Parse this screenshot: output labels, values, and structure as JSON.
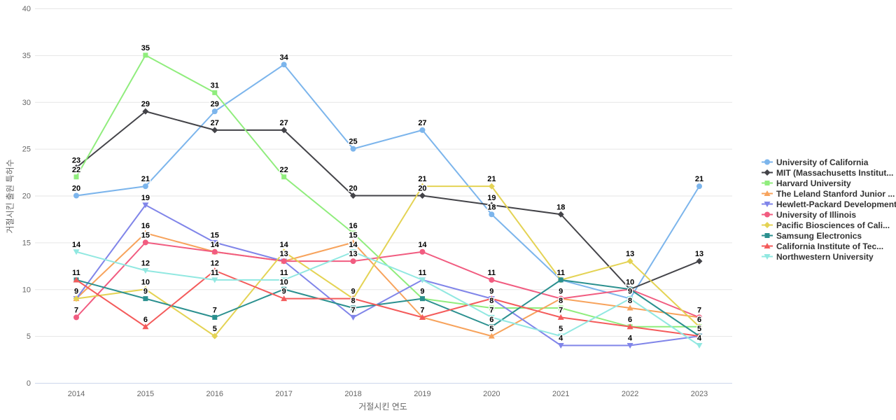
{
  "chart_data": {
    "type": "line",
    "title": "",
    "xlabel": "거절시킨 연도",
    "ylabel": "거절시킨 출원 특허수",
    "x": [
      2014,
      2015,
      2016,
      2017,
      2018,
      2019,
      2020,
      2021,
      2022,
      2023
    ],
    "ylim": [
      0,
      40
    ],
    "yticks": [
      0,
      5,
      10,
      15,
      20,
      25,
      30,
      35,
      40
    ],
    "grid": "horizontal",
    "legend_position": "right",
    "data_labels": true,
    "series": [
      {
        "name": "University of California",
        "color": "#7cb5ec",
        "marker": "circle",
        "values": [
          20,
          21,
          29,
          34,
          25,
          27,
          18,
          11,
          9,
          21
        ]
      },
      {
        "name": "MIT (Massachusetts Institut...",
        "color": "#434348",
        "marker": "diamond",
        "values": [
          23,
          29,
          27,
          27,
          20,
          20,
          19,
          18,
          10,
          13
        ]
      },
      {
        "name": "Harvard University",
        "color": "#90ed7d",
        "marker": "square",
        "values": [
          22,
          35,
          31,
          22,
          16,
          9,
          8,
          8,
          6,
          6
        ]
      },
      {
        "name": "The Leland Stanford Junior ...",
        "color": "#f7a35c",
        "marker": "triangle",
        "values": [
          9,
          16,
          14,
          13,
          15,
          7,
          5,
          9,
          8,
          7
        ]
      },
      {
        "name": "Hewlett-Packard Development",
        "color": "#8085e9",
        "marker": "triangle-down",
        "values": [
          9,
          19,
          15,
          13,
          7,
          11,
          9,
          4,
          4,
          5
        ]
      },
      {
        "name": "University of Illinois",
        "color": "#f15c80",
        "marker": "circle",
        "values": [
          7,
          15,
          14,
          13,
          13,
          14,
          11,
          9,
          10,
          7
        ]
      },
      {
        "name": "Pacific Biosciences of Cali...",
        "color": "#e4d354",
        "marker": "diamond",
        "values": [
          9,
          10,
          5,
          14,
          9,
          21,
          21,
          11,
          13,
          6
        ]
      },
      {
        "name": "Samsung Electronics",
        "color": "#2b908f",
        "marker": "square",
        "values": [
          11,
          9,
          7,
          10,
          8,
          9,
          6,
          11,
          10,
          5
        ]
      },
      {
        "name": "California Institute of Tec...",
        "color": "#f45b5b",
        "marker": "triangle",
        "values": [
          11,
          6,
          12,
          9,
          9,
          7,
          9,
          7,
          6,
          5
        ]
      },
      {
        "name": "Northwestern University",
        "color": "#91e8e1",
        "marker": "triangle-down",
        "values": [
          14,
          12,
          11,
          11,
          14,
          11,
          7,
          5,
          9,
          4
        ]
      }
    ]
  },
  "colors": {
    "background": "#ffffff",
    "grid_line": "#e6e6e6",
    "axis_line": "#ccd6eb",
    "tick_label": "#666666",
    "axis_title": "#666666",
    "legend_text": "#333333",
    "data_label": "#000000"
  }
}
